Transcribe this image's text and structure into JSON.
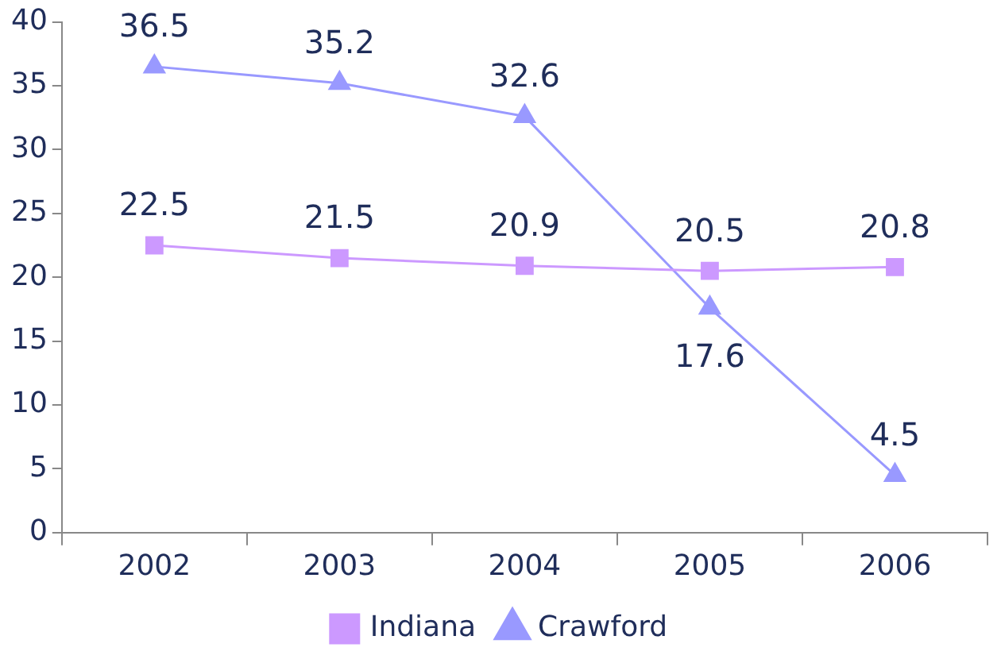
{
  "chart_data": {
    "type": "line",
    "categories": [
      "2002",
      "2003",
      "2004",
      "2005",
      "2006"
    ],
    "series": [
      {
        "name": "Indiana",
        "color": "#cc99ff",
        "marker": "square",
        "values": [
          22.5,
          21.5,
          20.9,
          20.5,
          20.8
        ]
      },
      {
        "name": "Crawford",
        "color": "#9999ff",
        "marker": "triangle",
        "values": [
          36.5,
          35.2,
          32.6,
          17.6,
          4.5
        ]
      }
    ],
    "ylim": [
      0,
      40
    ],
    "yticks": [
      0,
      5,
      10,
      15,
      20,
      25,
      30,
      35,
      40
    ],
    "grid": false,
    "legend": "bottom",
    "data_labels": true,
    "line_style": "solid"
  }
}
